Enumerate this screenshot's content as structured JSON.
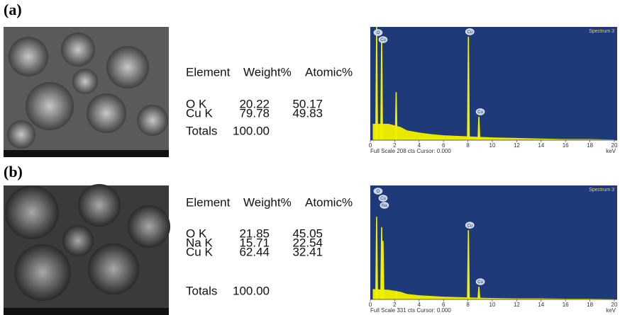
{
  "panels": [
    {
      "label": "(a)",
      "table": {
        "header": [
          "Element",
          "Weight%",
          "Atomic%"
        ],
        "rows": [
          [
            "O K",
            "20.22",
            "50.17"
          ],
          [
            "Cu K",
            "79.78",
            "49.83"
          ]
        ],
        "totals": [
          "Totals",
          "100.00"
        ]
      },
      "spectrum": {
        "title": "Spectrum 3",
        "footer": "Full Scale 208 cts Cursor: 0.000",
        "unit": "keV",
        "xlim": [
          0,
          20
        ],
        "ylim": [
          0,
          208
        ],
        "xticks": [
          0,
          2,
          4,
          6,
          8,
          10,
          12,
          14,
          16,
          18,
          20
        ],
        "continuum_x": [
          0.2,
          1.5,
          2.5,
          3,
          4,
          5,
          6,
          7,
          8,
          9,
          10,
          12,
          14,
          16,
          18,
          20
        ],
        "continuum": [
          30,
          30,
          24,
          18,
          14,
          11,
          9,
          8,
          7,
          6,
          5,
          4,
          3,
          2,
          2,
          1
        ],
        "peaks": [
          {
            "x": 0.52,
            "height": 208,
            "label": "O"
          },
          {
            "x": 0.93,
            "height": 190,
            "label": "Cu"
          },
          {
            "x": 2.12,
            "height": 88
          },
          {
            "x": 8.04,
            "height": 190,
            "label": "Cu"
          },
          {
            "x": 8.9,
            "height": 43,
            "label": "Cu"
          }
        ]
      }
    },
    {
      "label": "(b)",
      "table": {
        "header": [
          "Element",
          "Weight%",
          "Atomic%"
        ],
        "rows": [
          [
            "O K",
            "21.85",
            "45.05"
          ],
          [
            "Na K",
            "15.71",
            "22.54"
          ],
          [
            "Cu K",
            "62.44",
            "32.41"
          ]
        ],
        "totals": [
          "Totals",
          "100.00"
        ]
      },
      "spectrum": {
        "title": "Spectrum 3",
        "footer": "Full Scale 331 cts Cursor: 0.000",
        "unit": "keV",
        "xlim": [
          0,
          20
        ],
        "ylim": [
          0,
          331
        ],
        "xticks": [
          0,
          2,
          4,
          6,
          8,
          10,
          12,
          14,
          16,
          18,
          20
        ],
        "continuum_x": [
          0.2,
          1.5,
          2.5,
          3,
          4,
          5,
          6,
          7,
          8,
          9,
          10,
          12,
          14,
          16,
          18,
          20
        ],
        "continuum": [
          30,
          28,
          22,
          16,
          12,
          10,
          8,
          7,
          6,
          5,
          4,
          3,
          3,
          2,
          2,
          1
        ],
        "peaks": [
          {
            "x": 0.52,
            "height": 240,
            "label": "O"
          },
          {
            "x": 0.93,
            "height": 210,
            "label": "Cu"
          },
          {
            "x": 1.04,
            "height": 170,
            "label": "Na"
          },
          {
            "x": 2.12,
            "height": 25
          },
          {
            "x": 8.04,
            "height": 201,
            "label": "Cu"
          },
          {
            "x": 8.9,
            "height": 37,
            "label": "Cu"
          }
        ]
      }
    }
  ]
}
